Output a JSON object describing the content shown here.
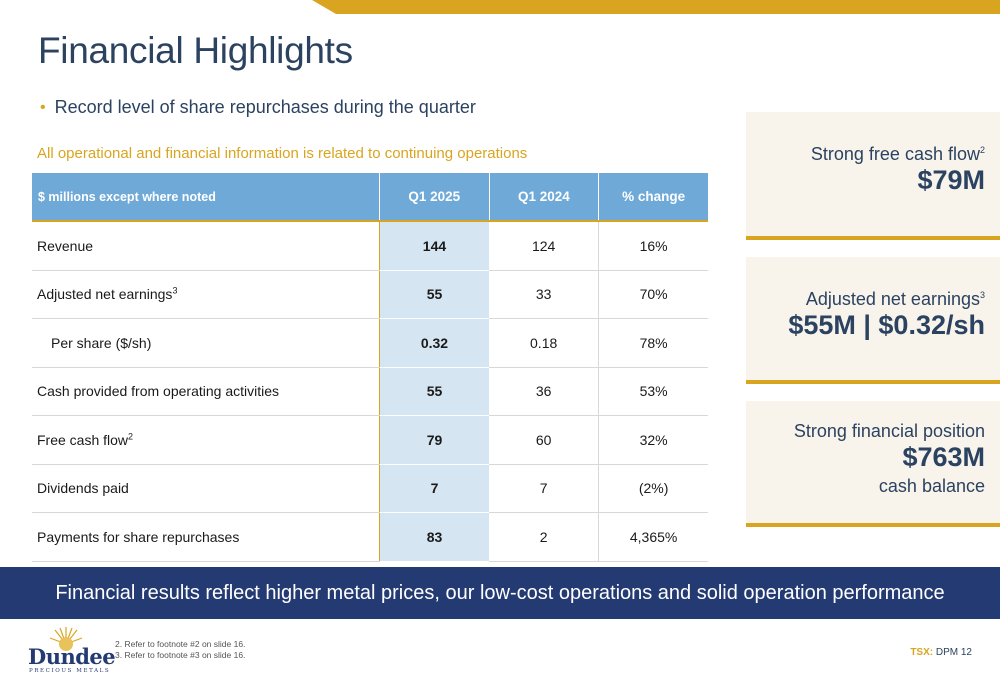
{
  "title": "Financial Highlights",
  "bullet": "Record level of share repurchases during the quarter",
  "note": "All operational and financial information is related to continuing operations",
  "table": {
    "headers": [
      "$ millions except where noted",
      "Q1 2025",
      "Q1 2024",
      "% change"
    ],
    "rows": [
      {
        "label": "Revenue",
        "sup": "",
        "q1_2025": "144",
        "q1_2024": "124",
        "change": "16%"
      },
      {
        "label": "Adjusted net earnings",
        "sup": "3",
        "q1_2025": "55",
        "q1_2024": "33",
        "change": "70%"
      },
      {
        "label": "Per share ($/sh)",
        "sup": "",
        "q1_2025": "0.32",
        "q1_2024": "0.18",
        "change": "78%"
      },
      {
        "label": "Cash provided from operating activities",
        "sup": "",
        "q1_2025": "55",
        "q1_2024": "36",
        "change": "53%"
      },
      {
        "label": "Free cash flow",
        "sup": "2",
        "q1_2025": "79",
        "q1_2024": "60",
        "change": "32%"
      },
      {
        "label": "Dividends paid",
        "sup": "",
        "q1_2025": "7",
        "q1_2024": "7",
        "change": "(2%)"
      },
      {
        "label": "Payments for share repurchases",
        "sup": "",
        "q1_2025": "83",
        "q1_2024": "2",
        "change": "4,365%"
      }
    ]
  },
  "kpis": [
    {
      "label": "Strong free cash flow",
      "sup": "2",
      "value": "$79M",
      "sub": ""
    },
    {
      "label": "Adjusted net earnings",
      "sup": "3",
      "value": "$55M | $0.32/sh",
      "sub": ""
    },
    {
      "label": "Strong financial position",
      "sup": "",
      "value": "$763M",
      "sub": "cash balance"
    }
  ],
  "banner": "Financial results reflect higher metal prices, our low-cost operations and solid operation performance",
  "footnotes": [
    "2. Refer to footnote #2 on slide 16.",
    "3. Refer to footnote #3 on slide 16."
  ],
  "footer": {
    "exchange": "TSX:",
    "ticker_page": "DPM 12"
  },
  "logo": {
    "word": "Dundee",
    "sub": "PRECIOUS METALS"
  },
  "colors": {
    "navy": "#243a72",
    "gold": "#d9a520",
    "header_blue": "#6fa9d8",
    "highlight_blue": "#d5e5f1",
    "panel_bg": "#f8f4ec"
  }
}
